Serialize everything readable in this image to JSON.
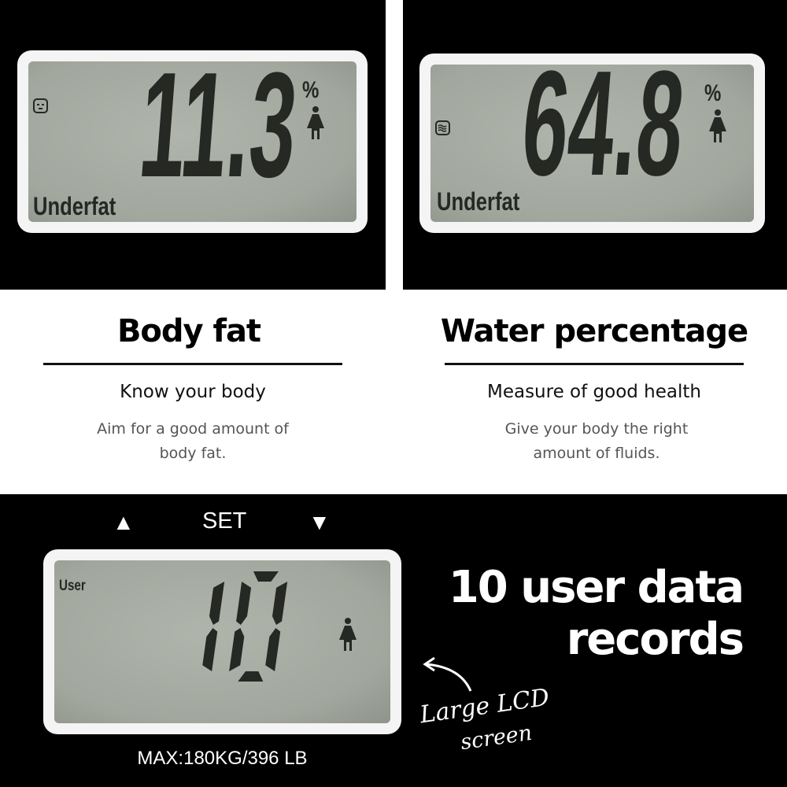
{
  "panels": {
    "body_fat_display": {
      "value": "11.3",
      "unit": "%",
      "status": "Underfat",
      "icon": "fat-face-icon",
      "gender_icon": "female-icon"
    },
    "water_display": {
      "value": "64.8",
      "unit": "%",
      "status": "Underfat",
      "icon": "water-waves-icon",
      "gender_icon": "female-icon"
    },
    "user_display": {
      "label": "User",
      "value": "10",
      "gender_icon": "female-icon"
    }
  },
  "body_fat": {
    "title": "Body fat",
    "subtitle": "Know your body",
    "desc_line1": "Aim for a good amount of",
    "desc_line2": "body fat."
  },
  "water": {
    "title": "Water percentage",
    "subtitle": "Measure of good health",
    "desc_line1": "Give your body the right",
    "desc_line2": "amount of fluids."
  },
  "controls": {
    "up": "▲",
    "set": "SET",
    "down": "▼"
  },
  "records": {
    "line1": "10 user data",
    "line2": "records"
  },
  "capacity": "MAX:180KG/396 LB",
  "annotation": {
    "line1": "Large LCD",
    "line2": "screen"
  },
  "colors": {
    "lcd_bg": "#a7aca3",
    "segment": "#262824",
    "panel": "#000000"
  }
}
